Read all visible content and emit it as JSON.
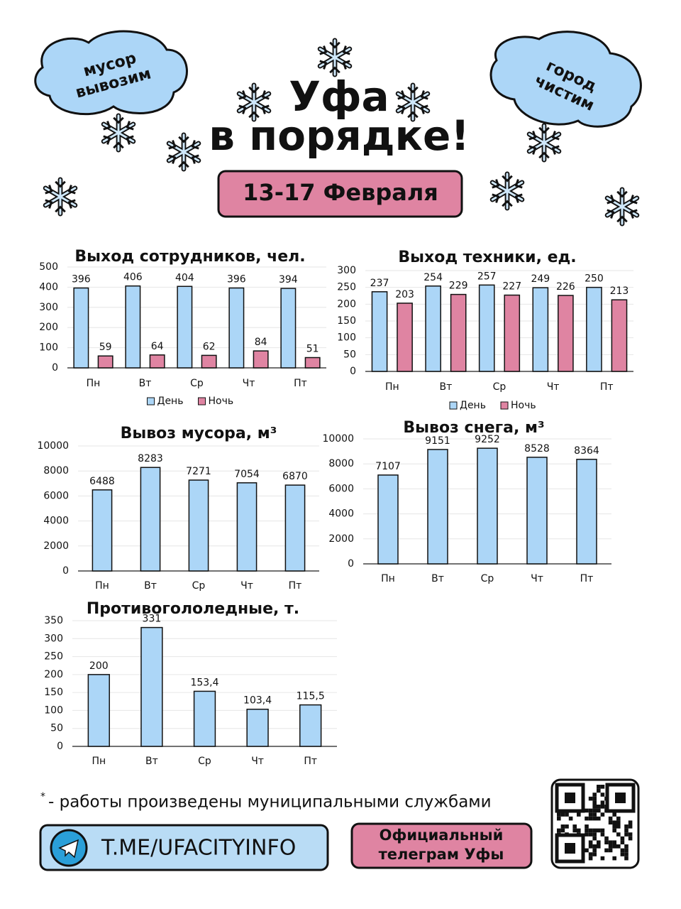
{
  "header": {
    "title_line1": "Уфа",
    "title_line2": "в порядке!",
    "dates": "13-17 Февраля",
    "cloud_left": [
      "мусор",
      "вывозим"
    ],
    "cloud_right": [
      "город",
      "чистим"
    ]
  },
  "chart_data": [
    {
      "type": "bar",
      "title": "Выход сотрудников, чел.",
      "categories": [
        "Пн",
        "Вт",
        "Ср",
        "Чт",
        "Пт"
      ],
      "series": [
        {
          "name": "День",
          "color": "#acd6f7",
          "values": [
            396,
            406,
            404,
            396,
            394
          ]
        },
        {
          "name": "Ночь",
          "color": "#df84a2",
          "values": [
            59,
            64,
            62,
            84,
            51
          ]
        }
      ],
      "ylim": [
        0,
        500
      ],
      "yticks": [
        0,
        100,
        200,
        300,
        400,
        500
      ],
      "grid": true,
      "legend": "bottom"
    },
    {
      "type": "bar",
      "title": "Выход техники, ед.",
      "categories": [
        "Пн",
        "Вт",
        "Ср",
        "Чт",
        "Пт"
      ],
      "series": [
        {
          "name": "День",
          "color": "#acd6f7",
          "values": [
            237,
            254,
            257,
            249,
            250
          ]
        },
        {
          "name": "Ночь",
          "color": "#df84a2",
          "values": [
            203,
            229,
            227,
            226,
            213
          ]
        }
      ],
      "ylim": [
        0,
        300
      ],
      "yticks": [
        0,
        50,
        100,
        150,
        200,
        250,
        300
      ],
      "grid": true,
      "legend": "bottom"
    },
    {
      "type": "bar",
      "title": "Вывоз мусора, м³",
      "categories": [
        "Пн",
        "Вт",
        "Ср",
        "Чт",
        "Пт"
      ],
      "values": [
        6488,
        8283,
        7271,
        7054,
        6870
      ],
      "color": "#acd6f7",
      "ylim": [
        0,
        10000
      ],
      "yticks": [
        0,
        2000,
        4000,
        6000,
        8000,
        10000
      ],
      "grid": true
    },
    {
      "type": "bar",
      "title": "Вывоз снега, м³",
      "categories": [
        "Пн",
        "Вт",
        "Ср",
        "Чт",
        "Пт"
      ],
      "values": [
        7107,
        9151,
        9252,
        8528,
        8364
      ],
      "color": "#acd6f7",
      "ylim": [
        0,
        10000
      ],
      "yticks": [
        0,
        2000,
        4000,
        6000,
        8000,
        10000
      ],
      "grid": true
    },
    {
      "type": "bar",
      "title": "Противогололедные, т.",
      "categories": [
        "Пн",
        "Вт",
        "Ср",
        "Чт",
        "Пт"
      ],
      "values": [
        200,
        331,
        153.4,
        103.4,
        115.5
      ],
      "value_labels": [
        "200",
        "331",
        "153,4",
        "103,4",
        "115,5"
      ],
      "color": "#acd6f7",
      "ylim": [
        0,
        350
      ],
      "yticks": [
        0,
        50,
        100,
        150,
        200,
        250,
        300,
        350
      ],
      "grid": true
    }
  ],
  "footer": {
    "note_mark": "*",
    "note": "- работы произведены муниципальными службами",
    "link": "T.ME/UFACITYINFO",
    "official": [
      "Официальный",
      "телеграм Уфы"
    ]
  }
}
